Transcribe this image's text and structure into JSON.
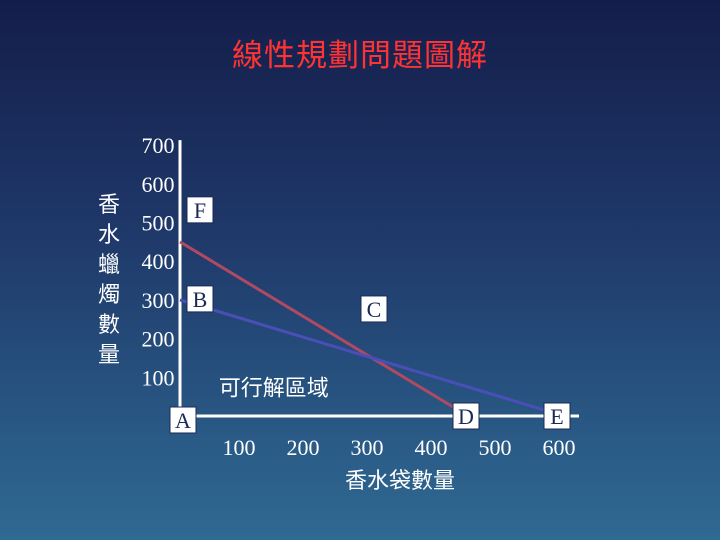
{
  "title": "線性規劃問題圖解",
  "chart_data": {
    "type": "line",
    "title": "線性規劃問題圖解",
    "xlabel": "香水袋數量",
    "ylabel": "香水蠟燭數量",
    "x_ticks": [
      "100",
      "200",
      "300",
      "400",
      "500",
      "600"
    ],
    "y_ticks": [
      "100",
      "200",
      "300",
      "400",
      "500",
      "600",
      "700"
    ],
    "xlim": [
      0,
      600
    ],
    "ylim": [
      0,
      700
    ],
    "grid": false,
    "series": [
      {
        "points": [
          [
            0,
            450
          ],
          [
            450,
            0
          ]
        ],
        "color": "#b04a63"
      },
      {
        "points": [
          [
            0,
            300
          ],
          [
            600,
            0
          ]
        ],
        "color": "#4a4fb8"
      }
    ],
    "points": [
      {
        "label": "A",
        "x": 0,
        "y": 0
      },
      {
        "label": "B",
        "x": 0,
        "y": 300
      },
      {
        "label": "C",
        "x": 300,
        "y": 150
      },
      {
        "label": "D",
        "x": 450,
        "y": 0
      },
      {
        "label": "E",
        "x": 600,
        "y": 0
      },
      {
        "label": "F",
        "x": 0,
        "y": 450
      }
    ],
    "annotations": [
      {
        "text": "可行解區域",
        "x": 120,
        "y": 50
      }
    ]
  }
}
